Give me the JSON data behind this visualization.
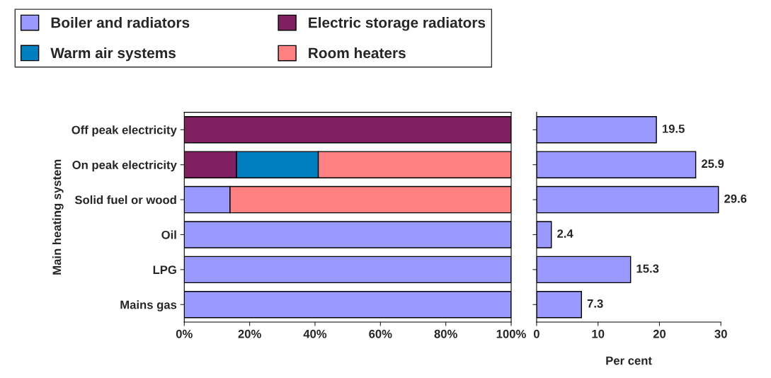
{
  "chart_data": [
    {
      "type": "bar",
      "orientation": "horizontal",
      "stacked": true,
      "ylabel": "Main heating system",
      "categories": [
        "Off peak electricity",
        "On peak electricity",
        "Solid fuel or wood",
        "Oil",
        "LPG",
        "Mains gas"
      ],
      "series": [
        {
          "name": "Boiler and radiators",
          "color": "#9999ff",
          "values": [
            null,
            null,
            14,
            100,
            100,
            100
          ]
        },
        {
          "name": "Electric storage radiators",
          "color": "#802060",
          "values": [
            100,
            16,
            null,
            null,
            null,
            null
          ]
        },
        {
          "name": "Warm air systems",
          "color": "#0080c0",
          "values": [
            null,
            25,
            null,
            null,
            null,
            null
          ]
        },
        {
          "name": "Room heaters",
          "color": "#ff8080",
          "values": [
            null,
            59,
            86,
            null,
            null,
            null
          ]
        }
      ],
      "xlim": [
        0,
        100
      ],
      "xticks": [
        {
          "value": 0,
          "label": "0%"
        },
        {
          "value": 20,
          "label": "20%"
        },
        {
          "value": 40,
          "label": "40%"
        },
        {
          "value": 60,
          "label": "60%"
        },
        {
          "value": 80,
          "label": "80%"
        },
        {
          "value": 100,
          "label": "100%"
        }
      ],
      "legend": "top",
      "grid": false
    },
    {
      "type": "bar",
      "orientation": "horizontal",
      "xlabel": "Per cent",
      "categories": [
        null,
        null,
        null,
        null,
        null,
        null
      ],
      "series": [
        {
          "color": "#9999ff",
          "values": [
            19.5,
            25.9,
            29.6,
            2.4,
            15.3,
            7.3
          ]
        }
      ],
      "xlim": [
        0,
        30
      ],
      "xticks": [
        0,
        10,
        20,
        30
      ],
      "data_labels": true,
      "grid": false
    }
  ]
}
